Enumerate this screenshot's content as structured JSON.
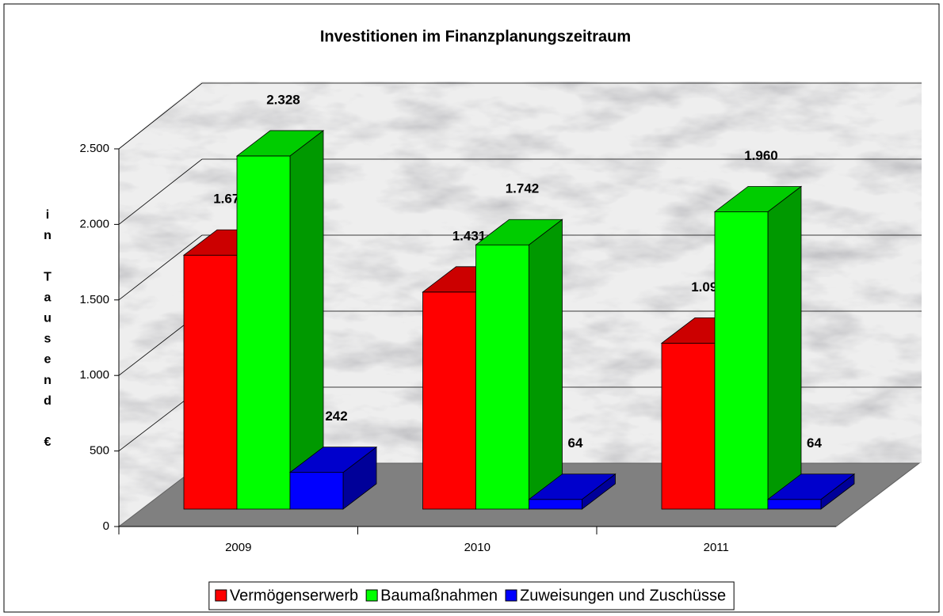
{
  "chart_data": {
    "type": "bar3d",
    "title": "Investitionen im Finanzplanungszeitraum",
    "y_label": "in Tausend €",
    "categories": [
      "2009",
      "2010",
      "2011"
    ],
    "series": [
      {
        "name": "Vermögenserwerb",
        "color": "#ff0000",
        "values": [
          1674,
          1431,
          1094
        ],
        "value_labels": [
          "1.674",
          "1.431",
          "1.094"
        ]
      },
      {
        "name": "Baumaßnahmen",
        "color": "#00ff00",
        "values": [
          2328,
          1742,
          1960
        ],
        "value_labels": [
          "2.328",
          "1.742",
          "1.960"
        ]
      },
      {
        "name": "Zuweisungen und Zuschüsse",
        "color": "#0000ff",
        "values": [
          242,
          64,
          64
        ],
        "value_labels": [
          "242",
          "64",
          "64"
        ]
      }
    ],
    "ylim": [
      0,
      2500
    ],
    "yticks": [
      0,
      500,
      {
        "value": 1000,
        "label": "1.000"
      },
      {
        "value": 1500,
        "label": "1.500"
      },
      {
        "value": 2000,
        "label": "2.000"
      },
      {
        "value": 2500,
        "label": "2.500"
      }
    ],
    "grid": true,
    "legend": "bottom"
  }
}
